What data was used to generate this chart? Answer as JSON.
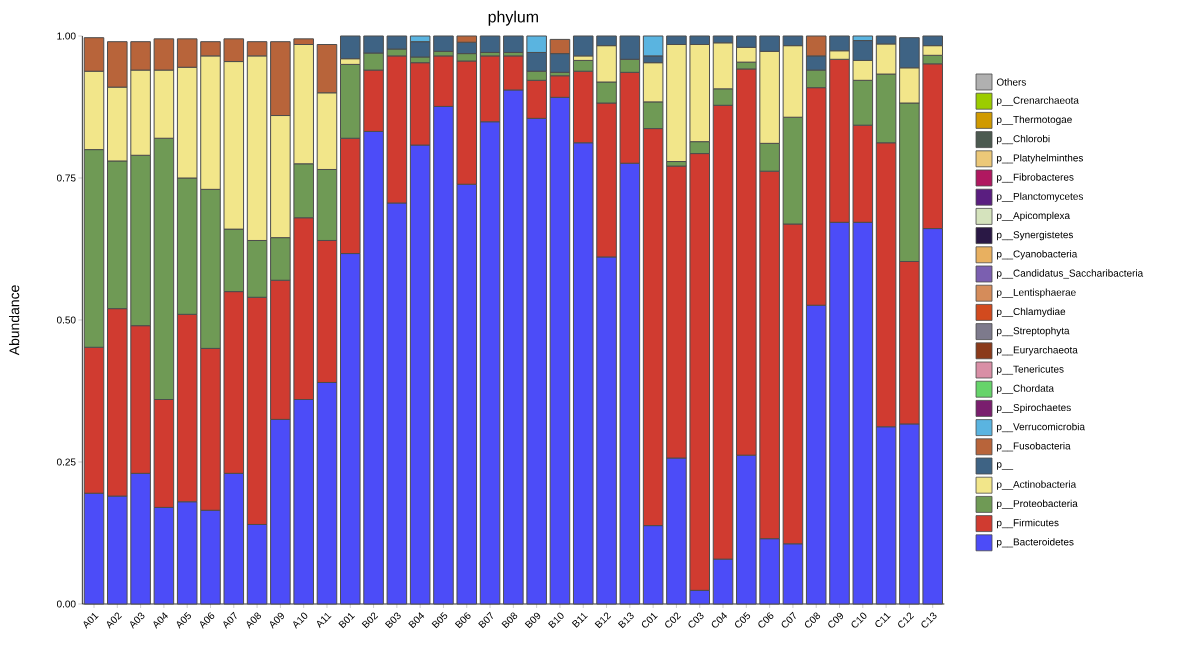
{
  "chart_data": {
    "type": "bar",
    "stacked": true,
    "title": "phylum",
    "ylabel": "Abundance",
    "legend": "right",
    "categories": [
      "A01",
      "A02",
      "A03",
      "A04",
      "A05",
      "A06",
      "A07",
      "A08",
      "A09",
      "A10",
      "A11",
      "B01",
      "B02",
      "B03",
      "B04",
      "B05",
      "B06",
      "B07",
      "B08",
      "B09",
      "B10",
      "B11",
      "B12",
      "B13",
      "C01",
      "C02",
      "C03",
      "C04",
      "C05",
      "C06",
      "C07",
      "C08",
      "C09",
      "C10",
      "C11",
      "C12",
      "C13"
    ],
    "ylim": [
      0,
      1
    ],
    "yticks": [
      {
        "value": 0,
        "label": "0.00"
      },
      {
        "value": 0.25,
        "label": "0.25"
      },
      {
        "value": 0.5,
        "label": "0.50"
      },
      {
        "value": 0.75,
        "label": "0.75"
      },
      {
        "value": 1,
        "label": "1.00"
      }
    ],
    "series": [
      {
        "name": "p__Bacteroidetes",
        "color": "#4c4cf8",
        "values": [
          0.195,
          0.19,
          0.23,
          0.17,
          0.18,
          0.165,
          0.23,
          0.14,
          0.325,
          0.36,
          0.39,
          0.617,
          0.832,
          0.706,
          0.808,
          0.876,
          0.739,
          0.849,
          0.905,
          0.855,
          0.892,
          0.812,
          0.611,
          0.776,
          0.138,
          0.257,
          0.024,
          0.079,
          0.262,
          0.115,
          0.106,
          0.526,
          0.672,
          0.672,
          0.312,
          0.317,
          0.661
        ]
      },
      {
        "name": "p__Firmicutes",
        "color": "#d03b30",
        "values": [
          0.257,
          0.33,
          0.26,
          0.19,
          0.33,
          0.285,
          0.32,
          0.4,
          0.245,
          0.32,
          0.25,
          0.203,
          0.108,
          0.259,
          0.145,
          0.089,
          0.217,
          0.116,
          0.06,
          0.067,
          0.038,
          0.126,
          0.271,
          0.16,
          0.699,
          0.514,
          0.769,
          0.799,
          0.68,
          0.647,
          0.563,
          0.383,
          0.287,
          0.171,
          0.5,
          0.286,
          0.29
        ]
      },
      {
        "name": "p__Proteobacteria",
        "color": "#6f9a55",
        "values": [
          0.348,
          0.26,
          0.3,
          0.46,
          0.24,
          0.28,
          0.11,
          0.1,
          0.075,
          0.095,
          0.125,
          0.13,
          0.03,
          0.012,
          0.01,
          0.008,
          0.013,
          0.006,
          0.006,
          0.016,
          0.006,
          0.019,
          0.037,
          0.023,
          0.047,
          0.008,
          0.021,
          0.029,
          0.012,
          0.049,
          0.188,
          0.031,
          null,
          0.079,
          0.121,
          0.279,
          0.015
        ]
      },
      {
        "name": "p__Actinobacteria",
        "color": "#f2e68a",
        "values": [
          0.138,
          0.13,
          0.15,
          0.12,
          0.195,
          0.235,
          0.295,
          0.325,
          0.215,
          0.21,
          0.135,
          0.01,
          null,
          null,
          null,
          null,
          null,
          null,
          null,
          null,
          null,
          0.008,
          0.064,
          null,
          0.069,
          0.206,
          0.171,
          0.081,
          0.026,
          0.162,
          0.126,
          null,
          0.015,
          0.035,
          0.053,
          0.062,
          0.017
        ]
      },
      {
        "name": "p__",
        "color": "#3e6384",
        "values": [
          null,
          null,
          null,
          null,
          null,
          null,
          null,
          null,
          null,
          null,
          null,
          0.04,
          0.03,
          0.023,
          0.027,
          0.027,
          0.02,
          0.029,
          0.029,
          0.033,
          0.033,
          0.035,
          0.017,
          0.041,
          0.012,
          0.015,
          0.015,
          0.012,
          0.02,
          0.027,
          0.017,
          0.025,
          0.026,
          0.035,
          0.014,
          0.053,
          0.017
        ]
      },
      {
        "name": "p__Fusobacteria",
        "color": "#b8643a",
        "values": [
          0.059,
          0.08,
          0.05,
          0.055,
          0.05,
          0.025,
          0.04,
          0.025,
          0.13,
          0.01,
          0.085,
          null,
          null,
          null,
          null,
          null,
          0.011,
          null,
          null,
          null,
          0.025,
          null,
          null,
          null,
          null,
          null,
          null,
          null,
          null,
          null,
          null,
          0.035,
          null,
          null,
          null,
          null,
          null
        ]
      },
      {
        "name": "p__Verrucomicrobia",
        "color": "#5ab4e0",
        "values": [
          null,
          null,
          null,
          null,
          null,
          null,
          null,
          null,
          null,
          null,
          null,
          null,
          null,
          null,
          0.01,
          null,
          null,
          null,
          null,
          0.029,
          null,
          null,
          null,
          null,
          0.035,
          null,
          null,
          null,
          null,
          null,
          null,
          null,
          null,
          0.008,
          null,
          null,
          null
        ]
      },
      {
        "name": "p__Spirochaetes",
        "color": "#7a1e6e",
        "values": [
          null,
          null,
          null,
          null,
          null,
          null,
          null,
          null,
          null,
          null,
          null,
          null,
          null,
          null,
          null,
          null,
          null,
          null,
          null,
          null,
          null,
          null,
          null,
          null,
          null,
          null,
          null,
          null,
          null,
          null,
          null,
          null,
          null,
          null,
          null,
          null,
          null
        ]
      },
      {
        "name": "p__Chordata",
        "color": "#66d46a",
        "values": [
          null,
          null,
          null,
          null,
          null,
          null,
          null,
          null,
          null,
          null,
          null,
          null,
          null,
          null,
          null,
          null,
          null,
          null,
          null,
          null,
          null,
          null,
          null,
          null,
          null,
          null,
          null,
          null,
          null,
          null,
          null,
          null,
          null,
          null,
          null,
          null,
          null
        ]
      },
      {
        "name": "p__Tenericutes",
        "color": "#d98fa6",
        "values": [
          null,
          null,
          null,
          null,
          null,
          null,
          null,
          null,
          null,
          null,
          null,
          null,
          null,
          null,
          null,
          null,
          null,
          null,
          null,
          null,
          null,
          null,
          null,
          null,
          null,
          null,
          null,
          null,
          null,
          null,
          null,
          null,
          null,
          null,
          null,
          null,
          null
        ]
      },
      {
        "name": "p__Euryarchaeota",
        "color": "#8b3a1a",
        "values": [
          null,
          null,
          null,
          null,
          null,
          null,
          null,
          null,
          null,
          null,
          null,
          null,
          null,
          null,
          null,
          null,
          null,
          null,
          null,
          null,
          null,
          null,
          null,
          null,
          null,
          null,
          null,
          null,
          null,
          null,
          null,
          null,
          null,
          null,
          null,
          null,
          null
        ]
      },
      {
        "name": "p__Streptophyta",
        "color": "#7d7a8c",
        "values": [
          null,
          null,
          null,
          null,
          null,
          null,
          null,
          null,
          null,
          null,
          null,
          null,
          null,
          null,
          null,
          null,
          null,
          null,
          null,
          null,
          null,
          null,
          null,
          null,
          null,
          null,
          null,
          null,
          null,
          null,
          null,
          null,
          null,
          null,
          null,
          null,
          null
        ]
      },
      {
        "name": "p__Chlamydiae",
        "color": "#d24a1e",
        "values": [
          null,
          null,
          null,
          null,
          null,
          null,
          null,
          null,
          null,
          null,
          null,
          null,
          null,
          null,
          null,
          null,
          null,
          null,
          null,
          null,
          null,
          null,
          null,
          null,
          null,
          null,
          null,
          null,
          null,
          null,
          null,
          null,
          null,
          null,
          null,
          null,
          null
        ]
      },
      {
        "name": "p__Lentisphaerae",
        "color": "#d58c5a",
        "values": [
          null,
          null,
          null,
          null,
          null,
          null,
          null,
          null,
          null,
          null,
          null,
          null,
          null,
          null,
          null,
          null,
          null,
          null,
          null,
          null,
          null,
          null,
          null,
          null,
          null,
          null,
          null,
          null,
          null,
          null,
          null,
          null,
          null,
          null,
          null,
          null,
          null
        ]
      },
      {
        "name": "p__Candidatus_Saccharibacteria",
        "color": "#7b5fb0",
        "values": [
          null,
          null,
          null,
          null,
          null,
          null,
          null,
          null,
          null,
          null,
          null,
          null,
          null,
          null,
          null,
          null,
          null,
          null,
          null,
          null,
          null,
          null,
          null,
          null,
          null,
          null,
          null,
          null,
          null,
          null,
          null,
          null,
          null,
          null,
          null,
          null,
          null
        ]
      },
      {
        "name": "p__Cyanobacteria",
        "color": "#e8b060",
        "values": [
          null,
          null,
          null,
          null,
          null,
          null,
          null,
          null,
          null,
          null,
          null,
          null,
          null,
          null,
          null,
          null,
          null,
          null,
          null,
          null,
          null,
          null,
          null,
          null,
          null,
          null,
          null,
          null,
          null,
          null,
          null,
          null,
          null,
          null,
          null,
          null,
          null
        ]
      },
      {
        "name": "p__Synergistetes",
        "color": "#2a1845",
        "values": [
          null,
          null,
          null,
          null,
          null,
          null,
          null,
          null,
          null,
          null,
          null,
          null,
          null,
          null,
          null,
          null,
          null,
          null,
          null,
          null,
          null,
          null,
          null,
          null,
          null,
          null,
          null,
          null,
          null,
          null,
          null,
          null,
          null,
          null,
          null,
          null,
          null
        ]
      },
      {
        "name": "p__Apicomplexa",
        "color": "#d5e3bd",
        "values": [
          null,
          null,
          null,
          null,
          null,
          null,
          null,
          null,
          null,
          null,
          null,
          null,
          null,
          null,
          null,
          null,
          null,
          null,
          null,
          null,
          null,
          null,
          null,
          null,
          null,
          null,
          null,
          null,
          null,
          null,
          null,
          null,
          null,
          null,
          null,
          null,
          null
        ]
      },
      {
        "name": "p__Planctomycetes",
        "color": "#5a1e80",
        "values": [
          null,
          null,
          null,
          null,
          null,
          null,
          null,
          null,
          null,
          null,
          null,
          null,
          null,
          null,
          null,
          null,
          null,
          null,
          null,
          null,
          null,
          null,
          null,
          null,
          null,
          null,
          null,
          null,
          null,
          null,
          null,
          null,
          null,
          null,
          null,
          null,
          null
        ]
      },
      {
        "name": "p__Fibrobacteres",
        "color": "#b01860",
        "values": [
          null,
          null,
          null,
          null,
          null,
          null,
          null,
          null,
          null,
          null,
          null,
          null,
          null,
          null,
          null,
          null,
          null,
          null,
          null,
          null,
          null,
          null,
          null,
          null,
          null,
          null,
          null,
          null,
          null,
          null,
          null,
          null,
          null,
          null,
          null,
          null,
          null
        ]
      },
      {
        "name": "p__Platyhelminthes",
        "color": "#ecc878",
        "values": [
          null,
          null,
          null,
          null,
          null,
          null,
          null,
          null,
          null,
          null,
          null,
          null,
          null,
          null,
          null,
          null,
          null,
          null,
          null,
          null,
          null,
          null,
          null,
          null,
          null,
          null,
          null,
          null,
          null,
          null,
          null,
          null,
          null,
          null,
          null,
          null,
          null
        ]
      },
      {
        "name": "p__Chlorobi",
        "color": "#4c5a50",
        "values": [
          null,
          null,
          null,
          null,
          null,
          null,
          null,
          null,
          null,
          null,
          null,
          null,
          null,
          null,
          null,
          null,
          null,
          null,
          null,
          null,
          null,
          null,
          null,
          null,
          null,
          null,
          null,
          null,
          null,
          null,
          null,
          null,
          null,
          null,
          null,
          null,
          null
        ]
      },
      {
        "name": "p__Thermotogae",
        "color": "#d09a00",
        "values": [
          null,
          null,
          null,
          null,
          null,
          null,
          null,
          null,
          null,
          null,
          null,
          null,
          null,
          null,
          null,
          null,
          null,
          null,
          null,
          null,
          null,
          null,
          null,
          null,
          null,
          null,
          null,
          null,
          null,
          null,
          null,
          null,
          null,
          null,
          null,
          null,
          null
        ]
      },
      {
        "name": "p__Crenarchaeota",
        "color": "#9ccc00",
        "values": [
          null,
          null,
          null,
          null,
          null,
          null,
          null,
          null,
          null,
          null,
          null,
          null,
          null,
          null,
          null,
          null,
          null,
          null,
          null,
          null,
          null,
          null,
          null,
          null,
          null,
          null,
          null,
          null,
          null,
          null,
          null,
          null,
          null,
          null,
          null,
          null,
          null
        ]
      },
      {
        "name": "Others",
        "color": "#b0b0b0",
        "values": [
          null,
          null,
          null,
          null,
          null,
          null,
          null,
          null,
          null,
          null,
          null,
          null,
          null,
          null,
          null,
          null,
          null,
          null,
          null,
          null,
          null,
          null,
          null,
          null,
          null,
          null,
          null,
          null,
          null,
          null,
          null,
          null,
          null,
          null,
          null,
          null,
          null
        ]
      }
    ]
  }
}
